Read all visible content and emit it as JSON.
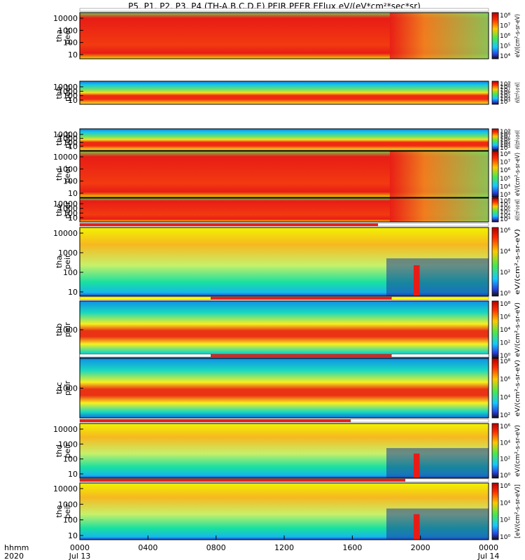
{
  "chart_data": {
    "type": "heatmap",
    "title": "P5, P1, P2, P3, P4 (TH-A,B,C,D,E) PEIR,PEER EFlux eV/(eV*cm²*sec*sr)",
    "time_axis": {
      "label_top": "hhmm",
      "label_bottom": "2020",
      "range_hours": [
        0,
        24
      ],
      "ticks": [
        {
          "hour": 0,
          "label": "0000",
          "sub": "Jul 13"
        },
        {
          "hour": 4,
          "label": "0400",
          "sub": ""
        },
        {
          "hour": 8,
          "label": "0800",
          "sub": ""
        },
        {
          "hour": 12,
          "label": "1200",
          "sub": ""
        },
        {
          "hour": 16,
          "label": "1600",
          "sub": ""
        },
        {
          "hour": 20,
          "label": "2000",
          "sub": ""
        },
        {
          "hour": 24,
          "label": "0000",
          "sub": "Jul 14"
        }
      ]
    },
    "panels": [
      {
        "probe": "tha",
        "species": "peer",
        "ylabel": [
          "tha",
          "peer"
        ],
        "yscale": "log",
        "yticks": [
          "10000",
          "1000",
          "100",
          "10"
        ],
        "colorbar_ticks": [
          "10⁸",
          "10⁷",
          "10⁶",
          "10⁵",
          "10⁴"
        ],
        "colorbar_label": "eV/(cm²-s-sr-eV)",
        "flags": [
          {
            "start": 0,
            "end": 24,
            "color": "#ffffff"
          }
        ]
      },
      {
        "probe": "thb",
        "species": "peer",
        "ylabel": [
          "thb",
          "peer"
        ],
        "yscale": "log",
        "yticks": [
          "10000",
          "1000",
          "100",
          "10"
        ],
        "colorbar_ticks": [
          "10⁹",
          "10⁸",
          "10⁷",
          "10⁶",
          "10⁵",
          "10⁴",
          "10³"
        ],
        "colorbar_label": "eV/(cm²-s-sr-eV)",
        "flags": []
      },
      {
        "probe": "thc",
        "species": "peer",
        "ylabel": [
          "thc",
          "peer"
        ],
        "yscale": "log",
        "yticks": [
          "10000",
          "1000",
          "100",
          "10"
        ],
        "colorbar_ticks": [
          "10⁹",
          "10⁸",
          "10⁷",
          "10⁶",
          "10⁵",
          "10⁴",
          "10³"
        ],
        "colorbar_label": "eV/(cm²-s-sr-eV)",
        "flags": []
      },
      {
        "probe": "thd",
        "species": "peer",
        "ylabel": [
          "thd",
          "peer"
        ],
        "yscale": "log",
        "yticks": [
          "10000",
          "1000",
          "100",
          "10"
        ],
        "colorbar_ticks": [
          "10⁸",
          "10⁷",
          "10⁶",
          "10⁵",
          "10⁴",
          "10³"
        ],
        "colorbar_label": "eV/(cm²-s-sr-eV)",
        "flags": []
      },
      {
        "probe": "the",
        "species": "peer",
        "ylabel": [
          "the",
          "peer"
        ],
        "yscale": "log",
        "yticks": [
          "10000",
          "1000",
          "100",
          "10"
        ],
        "colorbar_ticks": [
          "10⁸",
          "10⁷",
          "10⁶",
          "10⁵",
          "10⁴",
          "10³"
        ],
        "colorbar_label": "eV/(cm²-s-sr-eV)",
        "flags": []
      },
      {
        "probe": "tha",
        "species": "peir",
        "ylabel": [
          "tha",
          "peir"
        ],
        "yscale": "log",
        "yticks": [
          "10000",
          "1000",
          "100",
          "10"
        ],
        "colorbar_ticks": [
          "10⁶",
          "10⁴",
          "10²",
          "10⁰"
        ],
        "colorbar_label": "eV/(cm²-s-sr-eV)",
        "flags": [
          {
            "start": 0,
            "end": 17.5,
            "color": "#e8201a"
          },
          {
            "start": 17.5,
            "end": 24,
            "color": "#ffffff"
          }
        ]
      },
      {
        "probe": "thb",
        "species": "peir",
        "ylabel": [
          "thb",
          "peir"
        ],
        "yscale": "log",
        "yticks": [
          "1000"
        ],
        "colorbar_ticks": [
          "10⁸",
          "10⁶",
          "10⁴",
          "10²",
          "10⁰"
        ],
        "colorbar_label": "eV/(cm²-s-sr-eV)",
        "flags": [
          {
            "start": 0,
            "end": 7.7,
            "color": "#ffff00"
          },
          {
            "start": 7.7,
            "end": 18.3,
            "color": "#e8201a"
          },
          {
            "start": 18.3,
            "end": 24,
            "color": "#ffff00"
          }
        ]
      },
      {
        "probe": "thc",
        "species": "peir",
        "ylabel": [
          "thc",
          "peir"
        ],
        "yscale": "log",
        "yticks": [
          "1000"
        ],
        "colorbar_ticks": [
          "10⁸",
          "10⁶",
          "10⁴",
          "10²"
        ],
        "colorbar_label": "eV/(cm²-s-sr-eV)",
        "flags": [
          {
            "start": 0,
            "end": 7.7,
            "color": "#ffffff"
          },
          {
            "start": 7.7,
            "end": 18.3,
            "color": "#e8201a"
          },
          {
            "start": 18.3,
            "end": 24,
            "color": "#ffffff"
          }
        ]
      },
      {
        "probe": "thd",
        "species": "peir",
        "ylabel": [
          "thd",
          "peir"
        ],
        "yscale": "log",
        "yticks": [
          "10000",
          "1000",
          "100",
          "10"
        ],
        "colorbar_ticks": [
          "10⁶",
          "10⁴",
          "10²",
          "10⁰"
        ],
        "colorbar_label": "eV/(cm²-s-sr-eV)",
        "flags": [
          {
            "start": 0,
            "end": 15.9,
            "color": "#e8201a"
          },
          {
            "start": 15.9,
            "end": 24,
            "color": "#ffffff"
          }
        ]
      },
      {
        "probe": "the",
        "species": "peir",
        "ylabel": [
          "the",
          "peir"
        ],
        "yscale": "log",
        "yticks": [
          "10000",
          "1000",
          "100",
          "10"
        ],
        "colorbar_ticks": [
          "10⁶",
          "10⁴",
          "10²",
          "10⁰"
        ],
        "colorbar_label": "[eV/(cm²-s-sr-eV)]",
        "flags": [
          {
            "start": 0,
            "end": 19.1,
            "color": "#e8201a"
          },
          {
            "start": 19.1,
            "end": 24,
            "color": "#ffffff"
          }
        ]
      }
    ]
  }
}
